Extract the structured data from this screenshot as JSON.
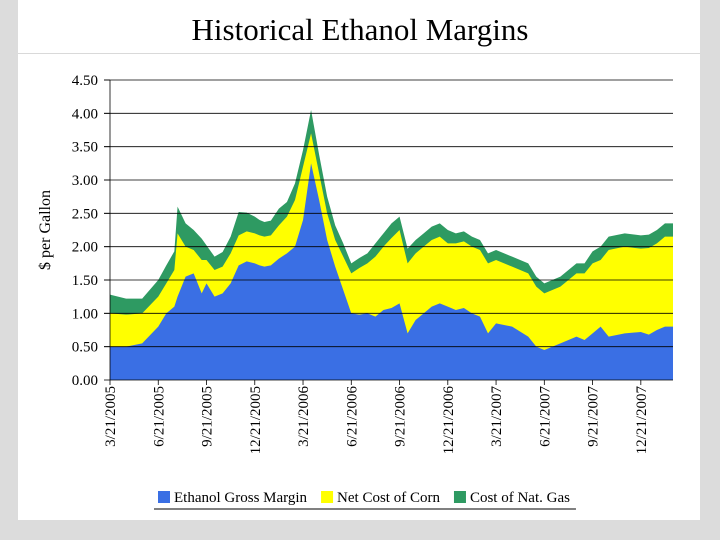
{
  "chart_data": {
    "type": "area",
    "stacked": true,
    "title": "Historical Ethanol Margins",
    "xlabel": "",
    "ylabel": "$ per Gallon",
    "ylim": [
      0,
      4.5
    ],
    "yticks": [
      "0.00",
      "0.50",
      "1.00",
      "1.50",
      "2.00",
      "2.50",
      "3.00",
      "3.50",
      "4.00",
      "4.50"
    ],
    "xticks": [
      "3/21/2005",
      "6/21/2005",
      "9/21/2005",
      "12/21/2005",
      "3/21/2006",
      "6/21/2006",
      "9/21/2006",
      "12/21/2006",
      "3/21/2007",
      "6/21/2007",
      "9/21/2007",
      "12/21/2007"
    ],
    "x_range_months": [
      0,
      35
    ],
    "grid": "horizontal",
    "legend_position": "bottom",
    "x": [
      0,
      1,
      2,
      3,
      3.5,
      4,
      4.2,
      4.7,
      5.2,
      5.7,
      6,
      6.5,
      7,
      7.5,
      8,
      8.5,
      9,
      9.3,
      9.6,
      10,
      10.5,
      11,
      11.5,
      12,
      12.5,
      13,
      13.5,
      14,
      14.5,
      15,
      15.5,
      16,
      16.5,
      17,
      17.5,
      18,
      18.5,
      19,
      19.5,
      20,
      20.5,
      21,
      21.5,
      22,
      22.5,
      23,
      23.5,
      24,
      25,
      26,
      26.5,
      27,
      28,
      29,
      29.5,
      30,
      30.5,
      31,
      32,
      33,
      33.5,
      34,
      34.5,
      35
    ],
    "series": [
      {
        "name": "Ethanol Gross Margin",
        "color": "#3a6fe4",
        "values": [
          0.5,
          0.5,
          0.55,
          0.8,
          1.0,
          1.1,
          1.25,
          1.55,
          1.6,
          1.3,
          1.45,
          1.25,
          1.3,
          1.45,
          1.72,
          1.78,
          1.75,
          1.72,
          1.7,
          1.72,
          1.82,
          1.9,
          2.0,
          2.4,
          3.25,
          2.7,
          2.1,
          1.7,
          1.35,
          1.0,
          0.98,
          1.0,
          0.95,
          1.05,
          1.08,
          1.15,
          0.7,
          0.9,
          1.0,
          1.1,
          1.15,
          1.1,
          1.05,
          1.08,
          1.0,
          0.95,
          0.7,
          0.85,
          0.8,
          0.65,
          0.5,
          0.45,
          0.55,
          0.65,
          0.6,
          0.7,
          0.8,
          0.65,
          0.7,
          0.72,
          0.68,
          0.75,
          0.8,
          0.8
        ]
      },
      {
        "name": "Net Cost of Corn",
        "color": "#ffff00",
        "values": [
          0.5,
          0.48,
          0.45,
          0.45,
          0.45,
          0.55,
          0.95,
          0.45,
          0.35,
          0.5,
          0.35,
          0.4,
          0.4,
          0.45,
          0.45,
          0.45,
          0.45,
          0.45,
          0.45,
          0.45,
          0.5,
          0.55,
          0.7,
          0.8,
          0.45,
          0.4,
          0.4,
          0.4,
          0.5,
          0.6,
          0.7,
          0.75,
          0.9,
          0.95,
          1.05,
          1.1,
          1.05,
          1.0,
          1.0,
          1.0,
          1.0,
          0.95,
          1.0,
          1.0,
          1.0,
          1.0,
          1.05,
          0.95,
          0.9,
          0.95,
          0.9,
          0.85,
          0.85,
          0.95,
          1.0,
          1.05,
          1.0,
          1.3,
          1.3,
          1.25,
          1.3,
          1.3,
          1.35,
          1.35
        ]
      },
      {
        "name": "Cost of Nat. Gas",
        "color": "#2e9a62",
        "values": [
          0.28,
          0.24,
          0.22,
          0.25,
          0.27,
          0.28,
          0.4,
          0.35,
          0.3,
          0.32,
          0.22,
          0.2,
          0.22,
          0.25,
          0.35,
          0.28,
          0.25,
          0.23,
          0.22,
          0.22,
          0.25,
          0.22,
          0.25,
          0.25,
          0.35,
          0.28,
          0.25,
          0.22,
          0.2,
          0.15,
          0.15,
          0.15,
          0.2,
          0.2,
          0.22,
          0.2,
          0.22,
          0.2,
          0.2,
          0.2,
          0.2,
          0.2,
          0.15,
          0.15,
          0.15,
          0.15,
          0.15,
          0.15,
          0.15,
          0.15,
          0.15,
          0.15,
          0.15,
          0.15,
          0.15,
          0.18,
          0.2,
          0.2,
          0.2,
          0.2,
          0.2,
          0.2,
          0.2,
          0.2
        ]
      }
    ]
  }
}
